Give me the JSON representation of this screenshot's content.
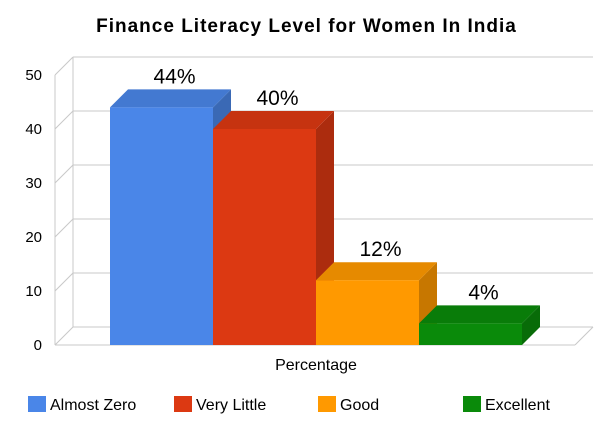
{
  "chart_data": {
    "type": "bar",
    "title": "Finance Literacy Level for Women In India",
    "xlabel": "Percentage",
    "ylabel": "",
    "ylim": [
      0,
      50
    ],
    "yticks": [
      0,
      10,
      20,
      30,
      40,
      50
    ],
    "categories": [
      "Percentage"
    ],
    "series": [
      {
        "name": "Almost Zero",
        "values": [
          44
        ],
        "label": "44%",
        "color": "#4a86e8"
      },
      {
        "name": "Very Little",
        "values": [
          40
        ],
        "label": "40%",
        "color": "#dc3912"
      },
      {
        "name": "Good",
        "values": [
          12
        ],
        "label": "12%",
        "color": "#ff9900"
      },
      {
        "name": "Excellent",
        "values": [
          4
        ],
        "label": "4%",
        "color": "#0a8a0a"
      }
    ],
    "grid": true,
    "legend_position": "bottom",
    "style": "3d"
  }
}
